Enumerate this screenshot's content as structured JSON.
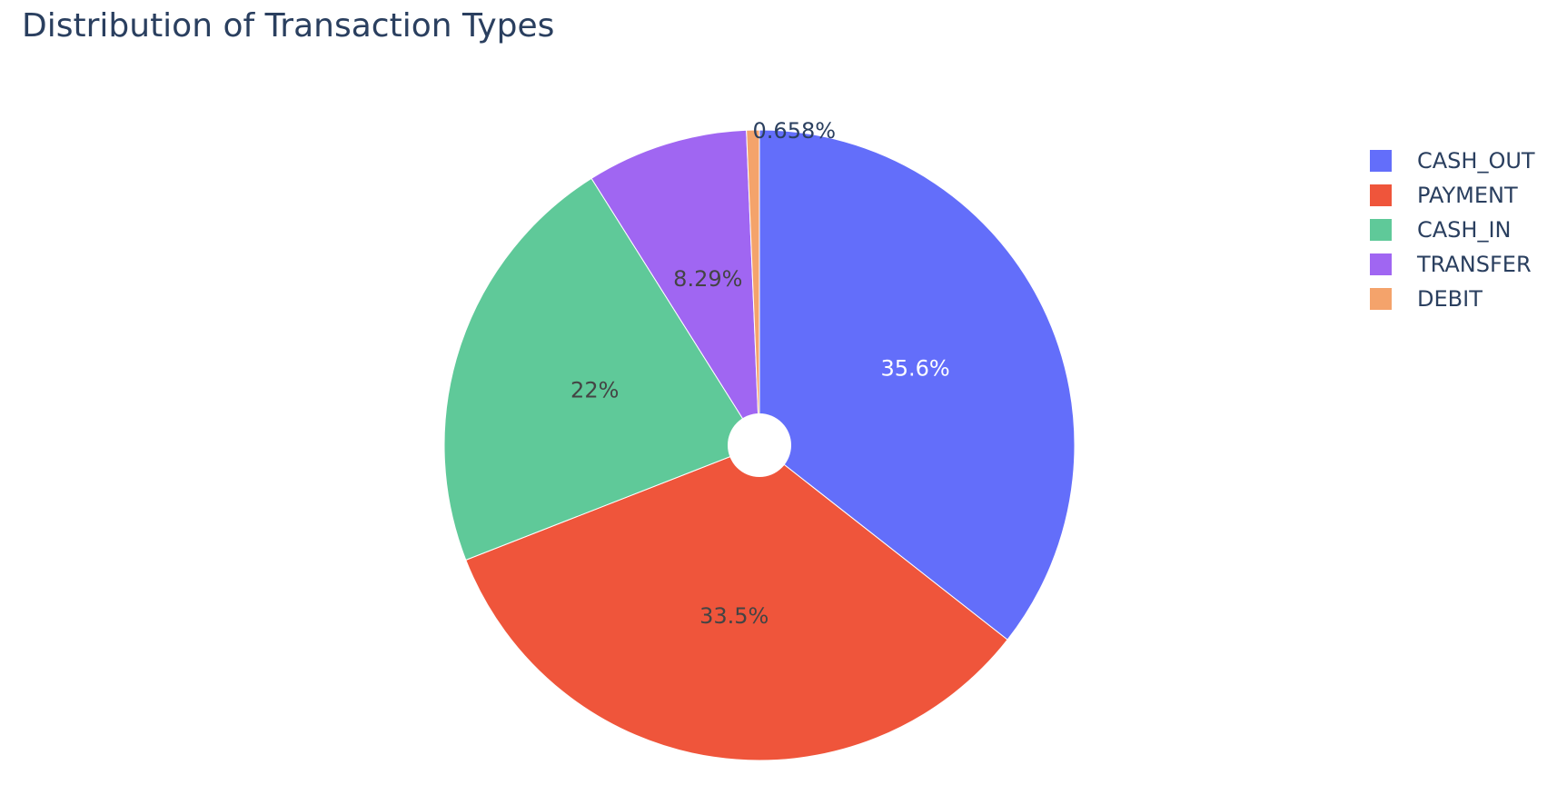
{
  "chart_data": {
    "type": "pie",
    "title": "Distribution of Transaction Types",
    "hole": true,
    "legend_position": "top-right",
    "slices": [
      {
        "label": "CASH_OUT",
        "value": 35.6,
        "text": "35.6%",
        "color": "#636efa",
        "text_color": "#ffffff"
      },
      {
        "label": "PAYMENT",
        "value": 33.5,
        "text": "33.5%",
        "color": "#ef553b",
        "text_color": "#444444"
      },
      {
        "label": "CASH_IN",
        "value": 22,
        "text": "22%",
        "color": "#5fc999",
        "text_color": "#444444"
      },
      {
        "label": "TRANSFER",
        "value": 8.29,
        "text": "8.29%",
        "color": "#a066f2",
        "text_color": "#444444"
      },
      {
        "label": "DEBIT",
        "value": 0.658,
        "text": "0.658%",
        "color": "#f4a36b",
        "text_color": "#2a3f5f"
      }
    ]
  }
}
